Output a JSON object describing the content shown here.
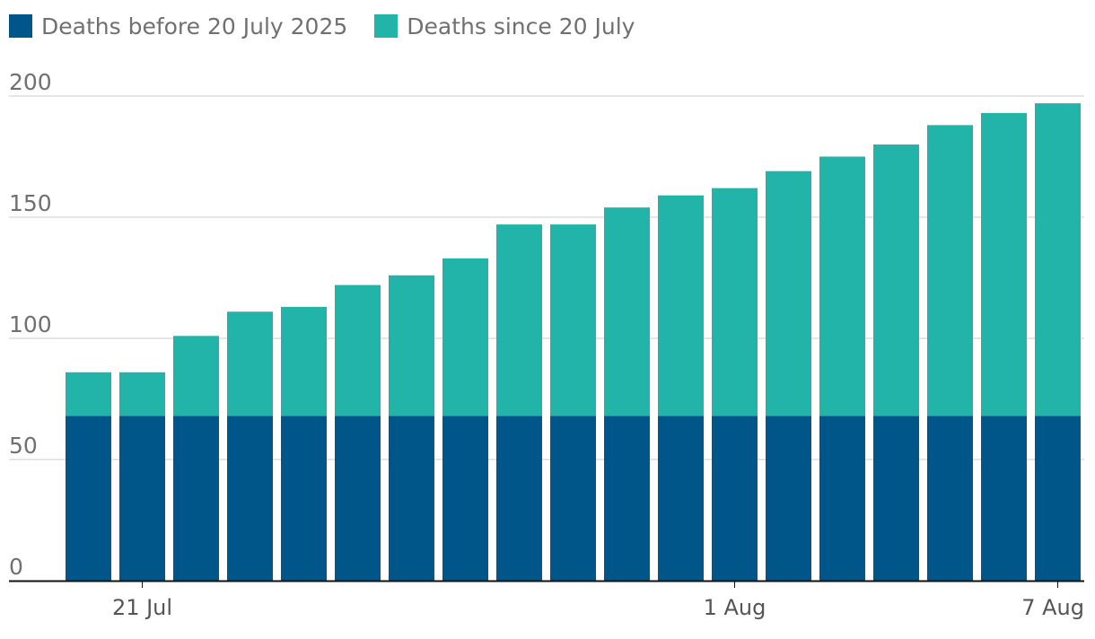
{
  "chart_data": {
    "type": "bar",
    "stacked": true,
    "x": [
      "20 Jul",
      "21 Jul",
      "22 Jul",
      "23 Jul",
      "24 Jul",
      "25 Jul",
      "26 Jul",
      "27 Jul",
      "28 Jul",
      "29 Jul",
      "30 Jul",
      "31 Jul",
      "1 Aug",
      "2 Aug",
      "3 Aug",
      "4 Aug",
      "5 Aug",
      "6 Aug",
      "7 Aug"
    ],
    "series": [
      {
        "name": "Deaths before 20 July 2025",
        "color": "#005689",
        "values": [
          68,
          68,
          68,
          68,
          68,
          68,
          68,
          68,
          68,
          68,
          68,
          68,
          68,
          68,
          68,
          68,
          68,
          68,
          68
        ]
      },
      {
        "name": "Deaths since 20 July",
        "color": "#22b4a8",
        "values": [
          18,
          18,
          33,
          43,
          45,
          54,
          58,
          65,
          79,
          79,
          86,
          91,
          94,
          101,
          107,
          112,
          120,
          125,
          129
        ]
      }
    ],
    "yticks": [
      0,
      50,
      100,
      150,
      200
    ],
    "xticks": [
      {
        "label": "21 Jul",
        "index": 1
      },
      {
        "label": "1 Aug",
        "index": 12
      },
      {
        "label": "7 Aug",
        "index": 18
      }
    ],
    "ylim": [
      0,
      200
    ],
    "title": "",
    "xlabel": "",
    "ylabel": "",
    "grid": true,
    "legend_position": "top-left"
  }
}
